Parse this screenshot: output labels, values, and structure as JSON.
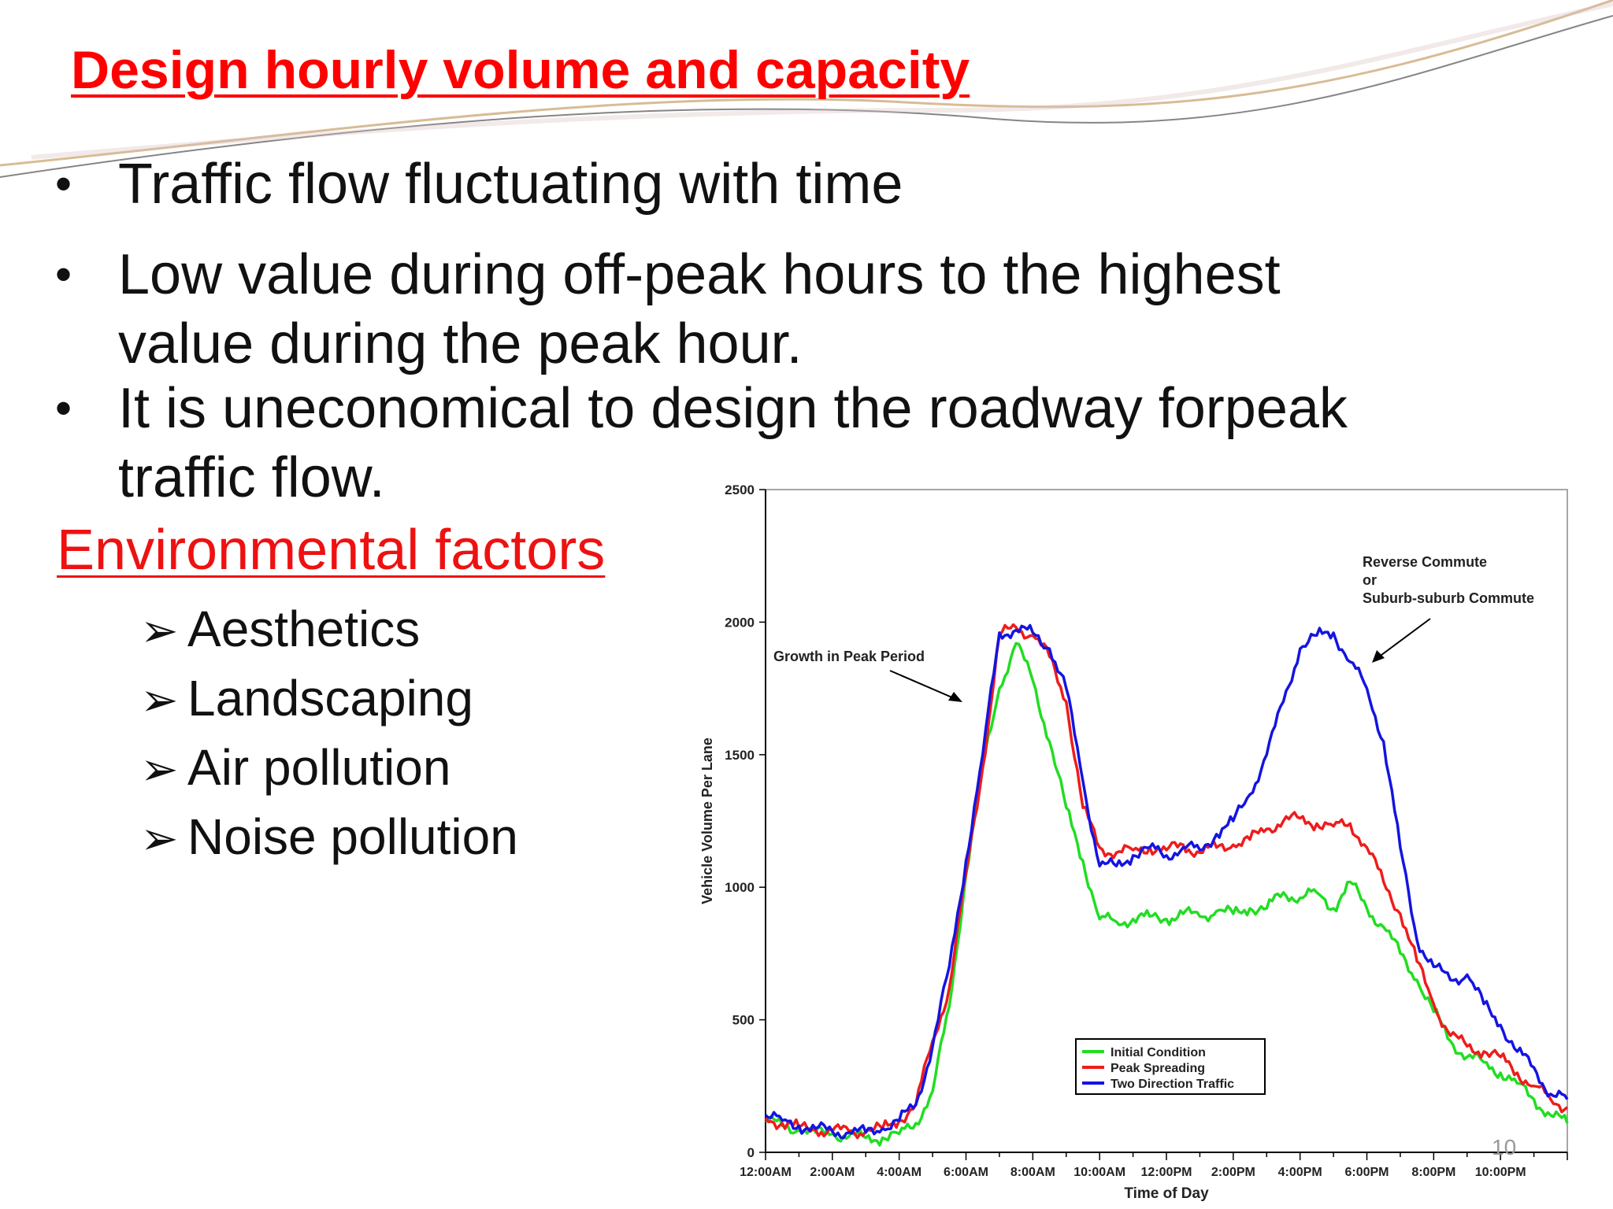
{
  "slide": {
    "title": "Design hourly volume and capacity",
    "bullets": [
      "Traffic flow fluctuating with time",
      "Low value during off-peak hours to the highest value during the peak hour.",
      "It is uneconomical to design the roadway forpeak traffic flow."
    ],
    "bullet_glyph": "•",
    "section_heading": "Environmental factors",
    "sub_glyph": "➢",
    "sub_items": [
      "Aesthetics",
      "Landscaping",
      "Air pollution",
      "Noise pollution"
    ],
    "slide_number": "10"
  },
  "colors": {
    "title": "#ff0000",
    "initial": "#22dd22",
    "peak_spreading": "#ee1c1c",
    "two_direction": "#1414e0"
  },
  "chart_data": {
    "type": "line",
    "title": "",
    "xlabel": "Time of Day",
    "ylabel": "Vehicle Volume Per Lane",
    "ylim": [
      0,
      2500
    ],
    "xlim": [
      0,
      24
    ],
    "yticks": [
      0,
      500,
      1000,
      1500,
      2000,
      2500
    ],
    "xtick_labels": [
      "12:00AM",
      "2:00AM",
      "4:00AM",
      "6:00AM",
      "8:00AM",
      "10:00AM",
      "12:00PM",
      "2:00PM",
      "4:00PM",
      "6:00PM",
      "8:00PM",
      "10:00PM"
    ],
    "xtick_hours": [
      0,
      2,
      4,
      6,
      8,
      10,
      12,
      14,
      16,
      18,
      20,
      22
    ],
    "legend": {
      "placement": "bottom-right",
      "entries": [
        "Initial Condition",
        "Peak Spreading",
        "Two Direction Traffic"
      ]
    },
    "annotations": [
      {
        "text": "Growth in Peak Period",
        "at": [
          6.0,
          1700
        ]
      },
      {
        "text": "Reverse Commute",
        "at": [
          18.2,
          1850
        ]
      },
      {
        "text": "or",
        "at": [
          18.2,
          1850
        ]
      },
      {
        "text": "Suburb-suburb Commute",
        "at": [
          18.2,
          1850
        ]
      }
    ],
    "series": [
      {
        "name": "Initial Condition",
        "x": [
          0,
          0.5,
          1,
          1.5,
          2,
          2.5,
          3,
          3.5,
          4,
          4.5,
          5,
          5.5,
          6,
          6.5,
          7,
          7.5,
          8,
          8.5,
          9,
          9.5,
          10,
          10.5,
          11,
          11.5,
          12,
          12.5,
          13,
          13.5,
          14,
          14.5,
          15,
          15.5,
          16,
          16.5,
          17,
          17.5,
          18,
          18.5,
          19,
          19.5,
          20,
          20.5,
          21,
          21.5,
          22,
          22.5,
          23,
          23.5,
          24
        ],
        "y": [
          120,
          100,
          85,
          75,
          70,
          60,
          55,
          55,
          70,
          110,
          230,
          550,
          1050,
          1450,
          1750,
          1920,
          1780,
          1550,
          1300,
          1100,
          880,
          870,
          880,
          890,
          880,
          900,
          890,
          910,
          900,
          920,
          920,
          980,
          960,
          980,
          920,
          1020,
          920,
          850,
          750,
          650,
          530,
          420,
          360,
          340,
          300,
          260,
          200,
          140,
          110
        ]
      },
      {
        "name": "Peak Spreading",
        "x": [
          0,
          0.5,
          1,
          1.5,
          2,
          2.5,
          3,
          3.5,
          4,
          4.5,
          5,
          5.5,
          6,
          6.5,
          7,
          7.5,
          8,
          8.5,
          9,
          9.5,
          10,
          10.5,
          11,
          11.5,
          12,
          12.5,
          13,
          13.5,
          14,
          14.5,
          15,
          15.5,
          16,
          16.5,
          17,
          17.5,
          18,
          18.5,
          19,
          19.5,
          20,
          20.5,
          21,
          21.5,
          22,
          22.5,
          23,
          23.5,
          24
        ],
        "y": [
          130,
          110,
          95,
          85,
          80,
          80,
          80,
          90,
          120,
          180,
          420,
          620,
          1050,
          1450,
          1950,
          1980,
          1950,
          1870,
          1700,
          1300,
          1150,
          1130,
          1140,
          1150,
          1140,
          1160,
          1130,
          1150,
          1160,
          1180,
          1220,
          1250,
          1260,
          1240,
          1230,
          1240,
          1150,
          1020,
          900,
          720,
          560,
          440,
          400,
          380,
          360,
          300,
          250,
          200,
          170
        ]
      },
      {
        "name": "Two Direction Traffic",
        "x": [
          0,
          0.5,
          1,
          1.5,
          2,
          2.5,
          3,
          3.5,
          4,
          4.5,
          5,
          5.5,
          6,
          6.5,
          7,
          7.5,
          8,
          8.5,
          9,
          9.5,
          10,
          10.5,
          11,
          11.5,
          12,
          12.5,
          13,
          13.5,
          14,
          14.5,
          15,
          15.5,
          16,
          16.5,
          17,
          17.5,
          18,
          18.5,
          19,
          19.5,
          20,
          20.5,
          21,
          21.5,
          22,
          22.5,
          23,
          23.5,
          24
        ],
        "y": [
          140,
          120,
          100,
          90,
          80,
          75,
          75,
          90,
          120,
          180,
          400,
          700,
          1100,
          1500,
          1960,
          1970,
          1960,
          1900,
          1750,
          1400,
          1080,
          1080,
          1120,
          1150,
          1120,
          1150,
          1140,
          1200,
          1250,
          1350,
          1500,
          1700,
          1900,
          1950,
          1960,
          1850,
          1750,
          1550,
          1150,
          800,
          700,
          650,
          670,
          560,
          480,
          380,
          320,
          220,
          200
        ]
      }
    ]
  }
}
